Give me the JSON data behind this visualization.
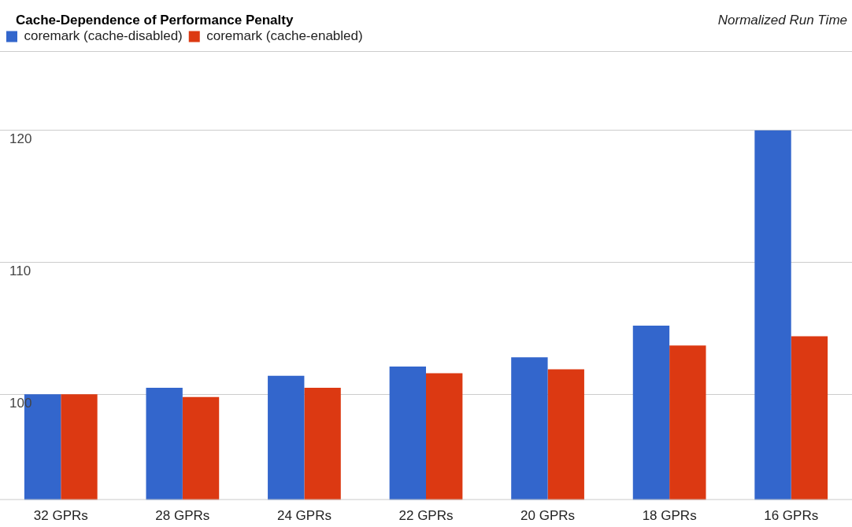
{
  "chart_data": {
    "type": "bar",
    "title": "Cache-Dependence of Performance Penalty",
    "ylabel": "Normalized Run Time",
    "categories": [
      "32 GPRs",
      "28 GPRs",
      "24 GPRs",
      "22 GPRs",
      "20 GPRs",
      "18 GPRs",
      "16 GPRs"
    ],
    "series": [
      {
        "name": "coremark (cache-disabled)",
        "color": "#3366cc",
        "values": [
          100,
          100.5,
          101.4,
          102.1,
          102.8,
          105.2,
          120
        ]
      },
      {
        "name": "coremark (cache-enabled)",
        "color": "#dc3912",
        "values": [
          100,
          99.8,
          100.5,
          101.6,
          101.9,
          103.7,
          104.4
        ]
      }
    ],
    "ylim": [
      92,
      126
    ],
    "yticks": [
      100,
      110,
      120
    ],
    "grid": "y",
    "legend": "top left"
  }
}
